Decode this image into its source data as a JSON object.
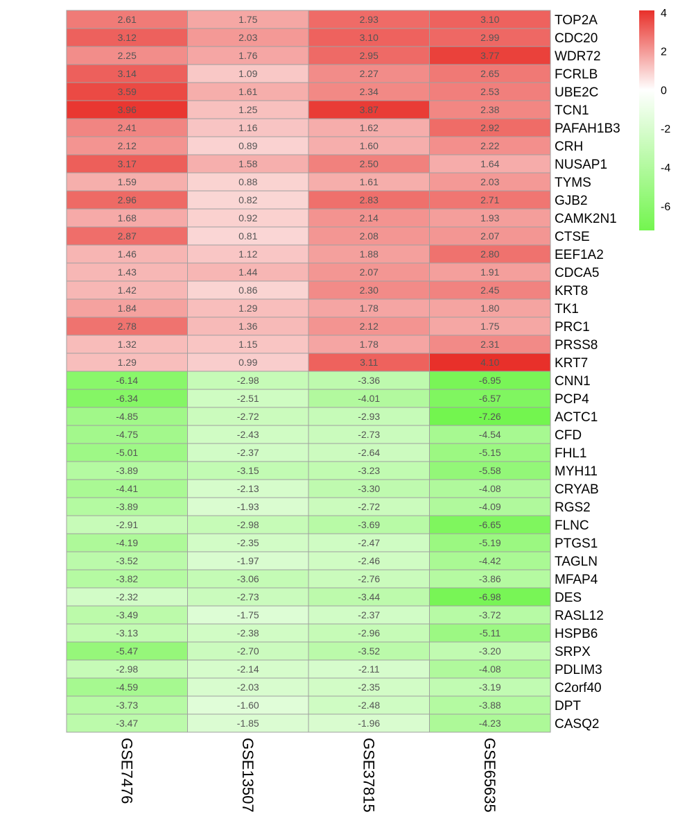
{
  "chart_data": {
    "type": "heatmap",
    "columns": [
      "GSE7476",
      "GSE13507",
      "GSE37815",
      "GSE65635"
    ],
    "rows": [
      {
        "gene": "TOP2A",
        "values": [
          2.61,
          1.75,
          2.93,
          3.1
        ]
      },
      {
        "gene": "CDC20",
        "values": [
          3.12,
          2.03,
          3.1,
          2.99
        ]
      },
      {
        "gene": "WDR72",
        "values": [
          2.25,
          1.76,
          2.95,
          3.77
        ]
      },
      {
        "gene": "FCRLB",
        "values": [
          3.14,
          1.09,
          2.27,
          2.65
        ]
      },
      {
        "gene": "UBE2C",
        "values": [
          3.59,
          1.61,
          2.34,
          2.53
        ]
      },
      {
        "gene": "TCN1",
        "values": [
          3.96,
          1.25,
          3.87,
          2.38
        ]
      },
      {
        "gene": "PAFAH1B3",
        "values": [
          2.41,
          1.16,
          1.62,
          2.92
        ]
      },
      {
        "gene": "CRH",
        "values": [
          2.12,
          0.89,
          1.6,
          2.22
        ]
      },
      {
        "gene": "NUSAP1",
        "values": [
          3.17,
          1.58,
          2.5,
          1.64
        ]
      },
      {
        "gene": "TYMS",
        "values": [
          1.59,
          0.88,
          1.61,
          2.03
        ]
      },
      {
        "gene": "GJB2",
        "values": [
          2.96,
          0.82,
          2.83,
          2.71
        ]
      },
      {
        "gene": "CAMK2N1",
        "values": [
          1.68,
          0.92,
          2.14,
          1.93
        ]
      },
      {
        "gene": "CTSE",
        "values": [
          2.87,
          0.81,
          2.08,
          2.07
        ]
      },
      {
        "gene": "EEF1A2",
        "values": [
          1.46,
          1.12,
          1.88,
          2.8
        ]
      },
      {
        "gene": "CDCA5",
        "values": [
          1.43,
          1.44,
          2.07,
          1.91
        ]
      },
      {
        "gene": "KRT8",
        "values": [
          1.42,
          0.86,
          2.3,
          2.45
        ]
      },
      {
        "gene": "TK1",
        "values": [
          1.84,
          1.29,
          1.78,
          1.8
        ]
      },
      {
        "gene": "PRC1",
        "values": [
          2.78,
          1.36,
          2.12,
          1.75
        ]
      },
      {
        "gene": "PRSS8",
        "values": [
          1.32,
          1.15,
          1.78,
          2.31
        ]
      },
      {
        "gene": "KRT7",
        "values": [
          1.29,
          0.99,
          3.11,
          4.1
        ]
      },
      {
        "gene": "CNN1",
        "values": [
          -6.14,
          -2.98,
          -3.36,
          -6.95
        ]
      },
      {
        "gene": "PCP4",
        "values": [
          -6.34,
          -2.51,
          -4.01,
          -6.57
        ]
      },
      {
        "gene": "ACTC1",
        "values": [
          -4.85,
          -2.72,
          -2.93,
          -7.26
        ]
      },
      {
        "gene": "CFD",
        "values": [
          -4.75,
          -2.43,
          -2.73,
          -4.54
        ]
      },
      {
        "gene": "FHL1",
        "values": [
          -5.01,
          -2.37,
          -2.64,
          -5.15
        ]
      },
      {
        "gene": "MYH11",
        "values": [
          -3.89,
          -3.15,
          -3.23,
          -5.58
        ]
      },
      {
        "gene": "CRYAB",
        "values": [
          -4.41,
          -2.13,
          -3.3,
          -4.08
        ]
      },
      {
        "gene": "RGS2",
        "values": [
          -3.89,
          -1.93,
          -2.72,
          -4.09
        ]
      },
      {
        "gene": "FLNC",
        "values": [
          -2.91,
          -2.98,
          -3.69,
          -6.65
        ]
      },
      {
        "gene": "PTGS1",
        "values": [
          -4.19,
          -2.35,
          -2.47,
          -5.19
        ]
      },
      {
        "gene": "TAGLN",
        "values": [
          -3.52,
          -1.97,
          -2.46,
          -4.42
        ]
      },
      {
        "gene": "MFAP4",
        "values": [
          -3.82,
          -3.06,
          -2.76,
          -3.86
        ]
      },
      {
        "gene": "DES",
        "values": [
          -2.32,
          -2.73,
          -3.44,
          -6.98
        ]
      },
      {
        "gene": "RASL12",
        "values": [
          -3.49,
          -1.75,
          -2.37,
          -3.72
        ]
      },
      {
        "gene": "HSPB6",
        "values": [
          -3.13,
          -2.38,
          -2.96,
          -5.11
        ]
      },
      {
        "gene": "SRPX",
        "values": [
          -5.47,
          -2.7,
          -3.52,
          -3.2
        ]
      },
      {
        "gene": "PDLIM3",
        "values": [
          -2.98,
          -2.14,
          -2.11,
          -4.08
        ]
      },
      {
        "gene": "C2orf40",
        "values": [
          -4.59,
          -2.03,
          -2.35,
          -3.19
        ]
      },
      {
        "gene": "DPT",
        "values": [
          -3.73,
          -1.6,
          -2.48,
          -3.88
        ]
      },
      {
        "gene": "CASQ2",
        "values": [
          -3.47,
          -1.85,
          -1.96,
          -4.23
        ]
      }
    ],
    "color_scale": {
      "min": -7.26,
      "max": 4.1,
      "low_color": "#73f54f",
      "mid_color": "#ffffff",
      "high_color": "#e8302a",
      "ticks": [
        "4",
        "2",
        "0",
        "-2",
        "-4",
        "-6"
      ]
    },
    "grid_color": "#a0a0a0"
  }
}
